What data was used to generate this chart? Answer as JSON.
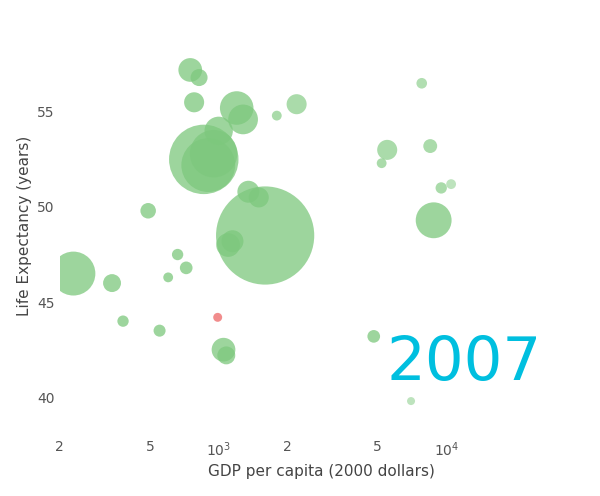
{
  "title": "",
  "xlabel": "GDP per capita (2000 dollars)",
  "ylabel": "Life Expectancy (years)",
  "year_label": "2007",
  "year_label_color": "#00BFDF",
  "xlim": [
    200,
    40000
  ],
  "ylim": [
    38,
    60
  ],
  "background_color": "#ffffff",
  "points": [
    {
      "gdp": 230,
      "le": 46.5,
      "pop": 12000000,
      "color": "#7dc87d",
      "alpha": 0.75
    },
    {
      "gdp": 340,
      "le": 46.0,
      "pop": 2000000,
      "color": "#7dc87d",
      "alpha": 0.75
    },
    {
      "gdp": 380,
      "le": 44.0,
      "pop": 800000,
      "color": "#7dc87d",
      "alpha": 0.75
    },
    {
      "gdp": 490,
      "le": 49.8,
      "pop": 1500000,
      "color": "#7dc87d",
      "alpha": 0.75
    },
    {
      "gdp": 550,
      "le": 43.5,
      "pop": 900000,
      "color": "#7dc87d",
      "alpha": 0.75
    },
    {
      "gdp": 600,
      "le": 46.3,
      "pop": 600000,
      "color": "#7dc87d",
      "alpha": 0.75
    },
    {
      "gdp": 660,
      "le": 47.5,
      "pop": 800000,
      "color": "#7dc87d",
      "alpha": 0.75
    },
    {
      "gdp": 720,
      "le": 46.8,
      "pop": 1000000,
      "color": "#7dc87d",
      "alpha": 0.75
    },
    {
      "gdp": 750,
      "le": 57.2,
      "pop": 3500000,
      "color": "#7dc87d",
      "alpha": 0.75
    },
    {
      "gdp": 780,
      "le": 55.5,
      "pop": 2500000,
      "color": "#7dc87d",
      "alpha": 0.75
    },
    {
      "gdp": 820,
      "le": 56.8,
      "pop": 1800000,
      "color": "#7dc87d",
      "alpha": 0.75
    },
    {
      "gdp": 860,
      "le": 52.5,
      "pop": 30000000,
      "color": "#7dc87d",
      "alpha": 0.75
    },
    {
      "gdp": 900,
      "le": 52.2,
      "pop": 18000000,
      "color": "#7dc87d",
      "alpha": 0.75
    },
    {
      "gdp": 950,
      "le": 52.8,
      "pop": 14000000,
      "color": "#7dc87d",
      "alpha": 0.75
    },
    {
      "gdp": 990,
      "le": 44.2,
      "pop": 500000,
      "color": "#f08080",
      "alpha": 0.9
    },
    {
      "gdp": 1000,
      "le": 54.0,
      "pop": 5000000,
      "color": "#7dc87d",
      "alpha": 0.75
    },
    {
      "gdp": 1050,
      "le": 42.5,
      "pop": 3500000,
      "color": "#7dc87d",
      "alpha": 0.75
    },
    {
      "gdp": 1080,
      "le": 42.2,
      "pop": 2000000,
      "color": "#7dc87d",
      "alpha": 0.75
    },
    {
      "gdp": 1100,
      "le": 48.0,
      "pop": 3500000,
      "color": "#7dc87d",
      "alpha": 0.75
    },
    {
      "gdp": 1150,
      "le": 48.2,
      "pop": 3000000,
      "color": "#7dc87d",
      "alpha": 0.75
    },
    {
      "gdp": 1200,
      "le": 55.2,
      "pop": 7000000,
      "color": "#7dc87d",
      "alpha": 0.75
    },
    {
      "gdp": 1280,
      "le": 54.6,
      "pop": 5500000,
      "color": "#7dc87d",
      "alpha": 0.75
    },
    {
      "gdp": 1350,
      "le": 50.8,
      "pop": 3000000,
      "color": "#7dc87d",
      "alpha": 0.75
    },
    {
      "gdp": 1500,
      "le": 50.5,
      "pop": 2500000,
      "color": "#7dc87d",
      "alpha": 0.75
    },
    {
      "gdp": 1600,
      "le": 48.5,
      "pop": 60000000,
      "color": "#7dc87d",
      "alpha": 0.75
    },
    {
      "gdp": 1800,
      "le": 54.8,
      "pop": 600000,
      "color": "#7dc87d",
      "alpha": 0.65
    },
    {
      "gdp": 2200,
      "le": 55.4,
      "pop": 2500000,
      "color": "#7dc87d",
      "alpha": 0.65
    },
    {
      "gdp": 4800,
      "le": 43.2,
      "pop": 1000000,
      "color": "#7dc87d",
      "alpha": 0.75
    },
    {
      "gdp": 5200,
      "le": 52.3,
      "pop": 600000,
      "color": "#7dc87d",
      "alpha": 0.65
    },
    {
      "gdp": 5500,
      "le": 53.0,
      "pop": 2500000,
      "color": "#7dc87d",
      "alpha": 0.65
    },
    {
      "gdp": 7000,
      "le": 39.8,
      "pop": 400000,
      "color": "#7dc87d",
      "alpha": 0.5
    },
    {
      "gdp": 7800,
      "le": 56.5,
      "pop": 700000,
      "color": "#7dc87d",
      "alpha": 0.6
    },
    {
      "gdp": 8500,
      "le": 53.2,
      "pop": 1200000,
      "color": "#7dc87d",
      "alpha": 0.65
    },
    {
      "gdp": 8800,
      "le": 49.3,
      "pop": 8000000,
      "color": "#7dc87d",
      "alpha": 0.75
    },
    {
      "gdp": 9500,
      "le": 51.0,
      "pop": 800000,
      "color": "#7dc87d",
      "alpha": 0.65
    },
    {
      "gdp": 10500,
      "le": 51.2,
      "pop": 600000,
      "color": "#7dc87d",
      "alpha": 0.5
    }
  ]
}
